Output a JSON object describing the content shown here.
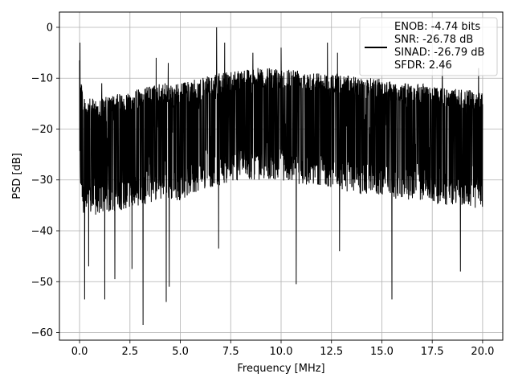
{
  "chart_data": {
    "type": "line",
    "title": "",
    "xlabel": "Frequency [MHz]",
    "ylabel": "PSD [dB]",
    "xlim": [
      -1,
      21
    ],
    "ylim": [
      -61.5,
      3
    ],
    "x_ticks": [
      0.0,
      2.5,
      5.0,
      7.5,
      10.0,
      12.5,
      15.0,
      17.5,
      20.0
    ],
    "x_tick_labels": [
      "0.0",
      "2.5",
      "5.0",
      "7.5",
      "10.0",
      "12.5",
      "15.0",
      "17.5",
      "20.0"
    ],
    "y_ticks": [
      0,
      -10,
      -20,
      -30,
      -40,
      -50,
      -60
    ],
    "y_tick_labels": [
      "0",
      "−10",
      "−20",
      "−30",
      "−40",
      "−50",
      "−60"
    ],
    "grid": true,
    "legend_position": "top-right",
    "line_color": "#000000",
    "series": [
      {
        "legend_lines": [
          "ENOB: -4.74 bits",
          "SNR: -26.78 dB",
          "SINAD: -26.79 dB",
          "SFDR: 2.46"
        ],
        "x_range": [
          0,
          20
        ],
        "band_envelope": {
          "x": [
            0,
            0.2,
            1,
            2,
            3,
            4,
            5,
            6,
            7,
            8,
            9,
            10,
            11,
            12,
            13,
            14,
            15,
            16,
            17,
            18,
            19,
            20
          ],
          "upper": [
            -6,
            -14,
            -14,
            -13,
            -12,
            -11,
            -11,
            -10,
            -9,
            -8,
            -8,
            -8,
            -8,
            -9,
            -9,
            -10,
            -10,
            -11,
            -11,
            -12,
            -12,
            -13
          ],
          "lower": [
            -30,
            -37,
            -37,
            -36,
            -35,
            -34,
            -34,
            -32,
            -31,
            -30,
            -30,
            -30,
            -31,
            -31,
            -32,
            -33,
            -33,
            -34,
            -34,
            -35,
            -35,
            -36
          ]
        },
        "peaks": [
          [
            0.02,
            -3
          ],
          [
            1.1,
            -11
          ],
          [
            3.8,
            -6
          ],
          [
            4.4,
            -7
          ],
          [
            6.8,
            0
          ],
          [
            7.2,
            -3
          ],
          [
            8.6,
            -5
          ],
          [
            10.0,
            -4
          ],
          [
            12.3,
            -3
          ],
          [
            12.8,
            -5
          ],
          [
            15.5,
            -6
          ],
          [
            18.0,
            -7
          ],
          [
            19.8,
            -8
          ]
        ],
        "dips": [
          [
            0.25,
            -53.5
          ],
          [
            0.45,
            -47
          ],
          [
            1.25,
            -53.5
          ],
          [
            1.75,
            -49.5
          ],
          [
            2.6,
            -47.5
          ],
          [
            3.15,
            -58.5
          ],
          [
            4.3,
            -54
          ],
          [
            4.45,
            -51
          ],
          [
            6.9,
            -43.5
          ],
          [
            10.75,
            -50.5
          ],
          [
            12.9,
            -44
          ],
          [
            15.5,
            -53.5
          ],
          [
            18.9,
            -48
          ]
        ]
      }
    ]
  }
}
